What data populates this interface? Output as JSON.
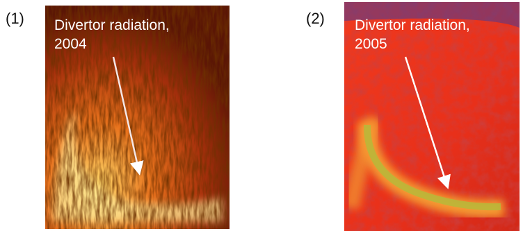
{
  "panels": [
    {
      "label": "(1)",
      "caption": [
        "Divertor radiation,",
        "2004"
      ]
    },
    {
      "label": "(2)",
      "caption": [
        "Divertor radiation,",
        "2005"
      ]
    }
  ]
}
